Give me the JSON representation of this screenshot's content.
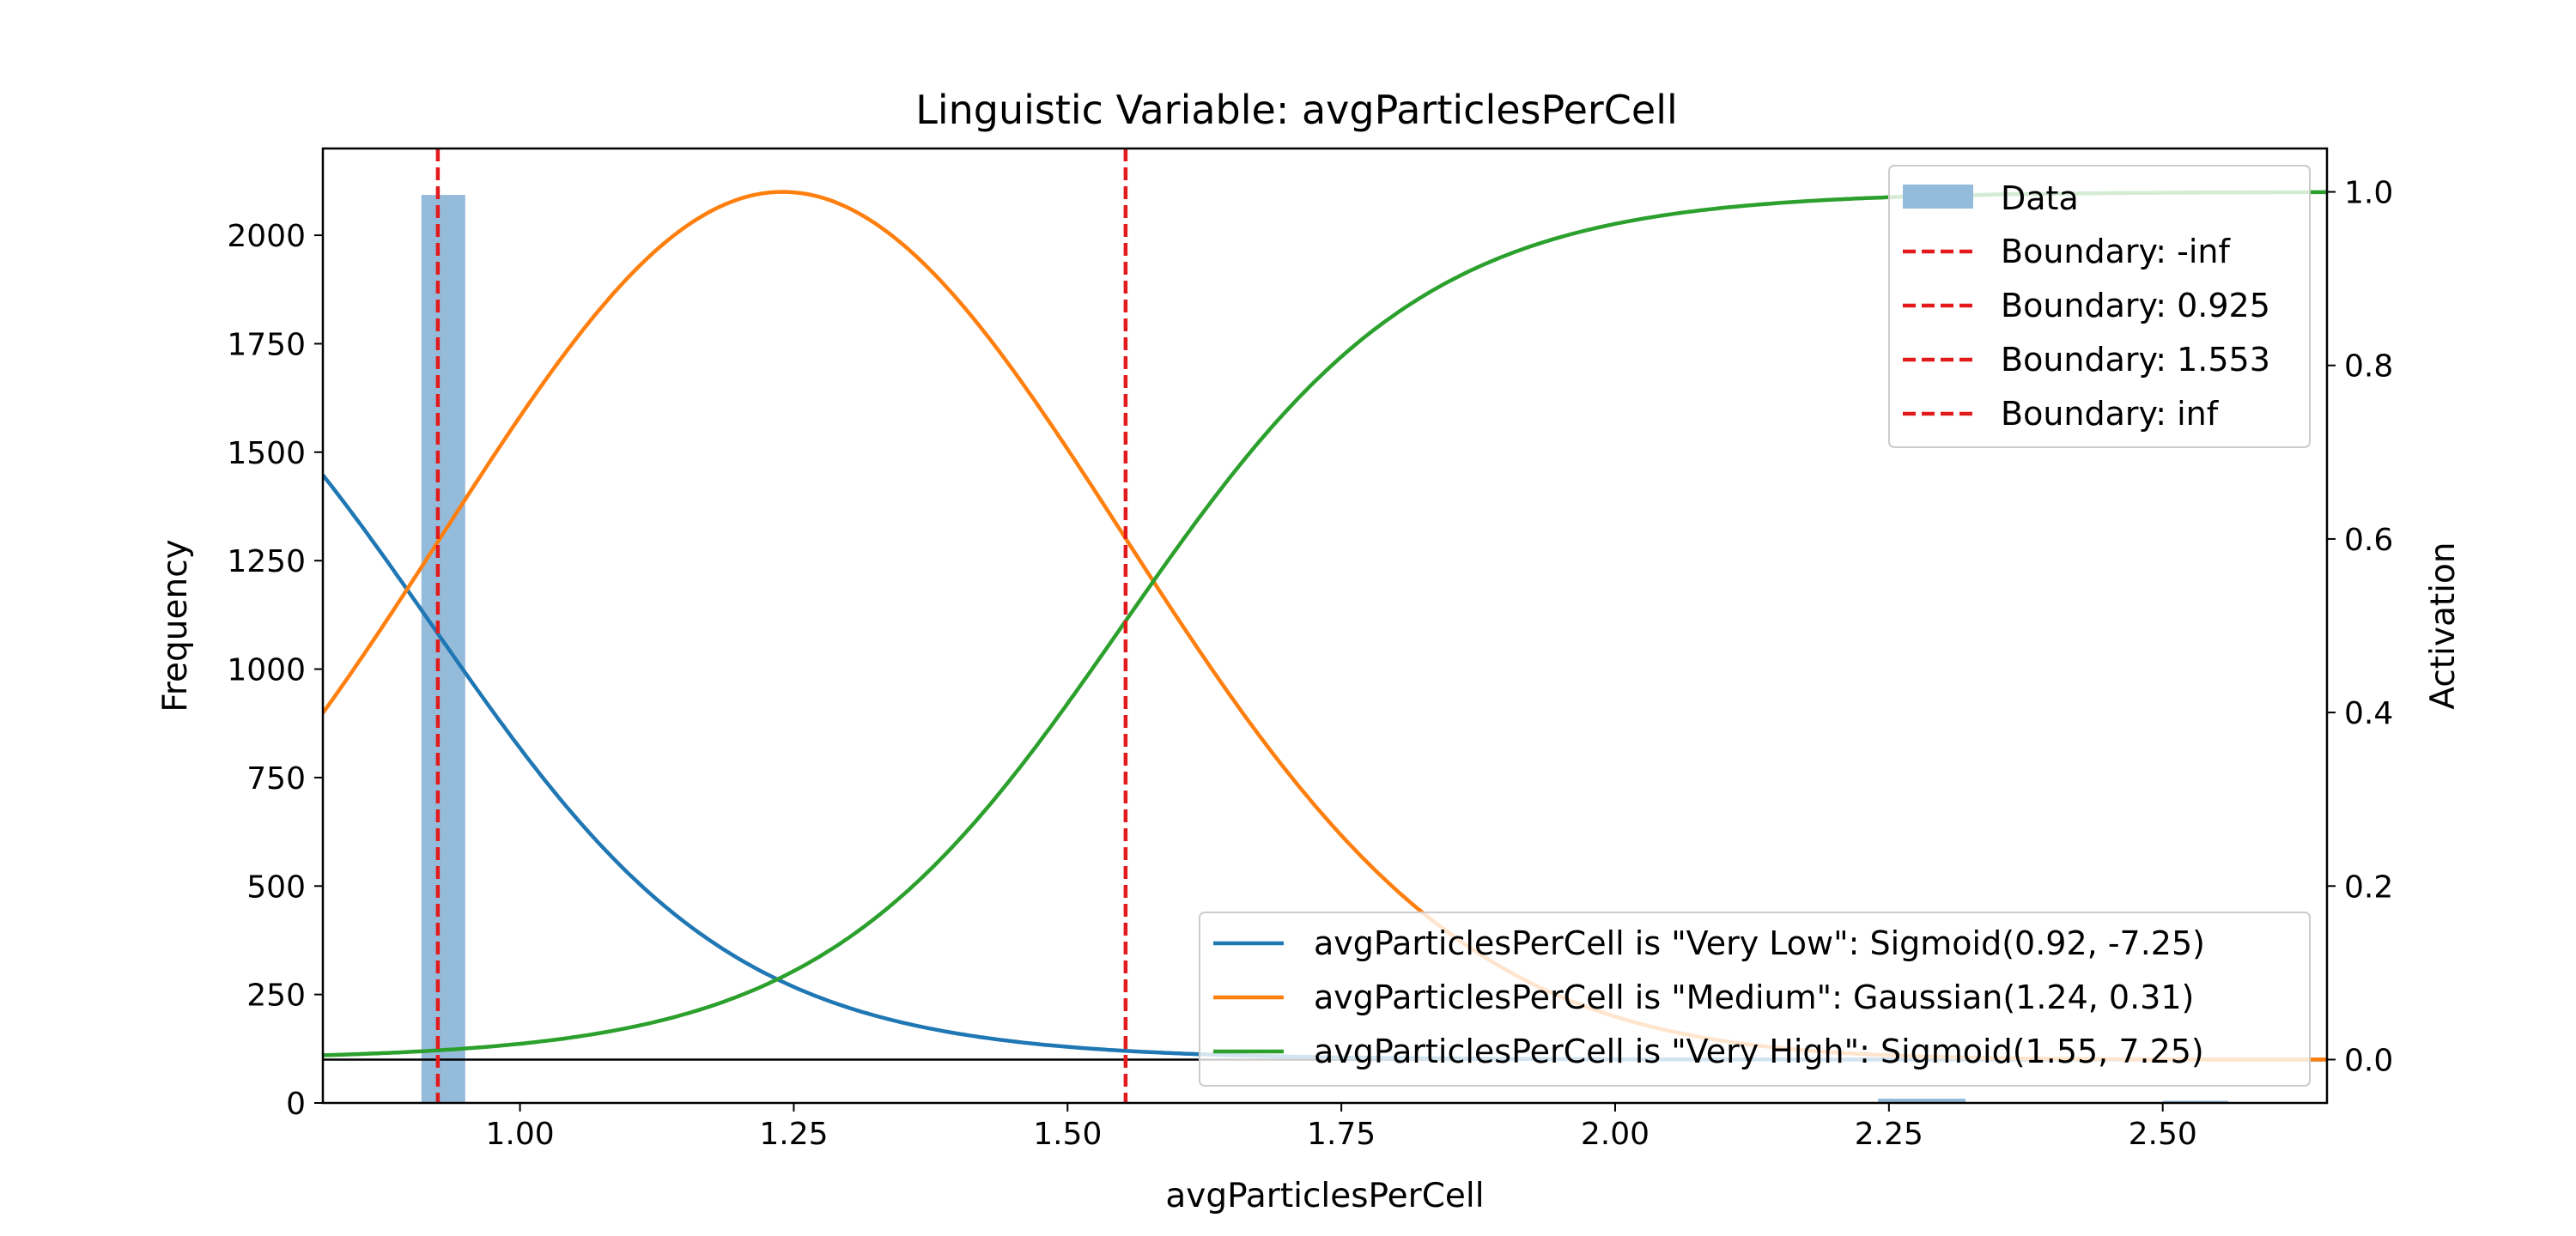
{
  "chart_data": {
    "type": "line",
    "title": "Linguistic Variable: avgParticlesPerCell",
    "xlabel": "avgParticlesPerCell",
    "ylabel": "Frequency",
    "y2label": "Activation",
    "xlim": [
      0.82,
      2.65
    ],
    "ylim": [
      0,
      2200
    ],
    "y2lim": [
      -0.05,
      1.05
    ],
    "x_ticks": [
      "1.00",
      "1.25",
      "1.50",
      "1.75",
      "2.00",
      "2.25",
      "2.50"
    ],
    "y_ticks": [
      "0",
      "250",
      "500",
      "750",
      "1000",
      "1250",
      "1500",
      "1750",
      "2000"
    ],
    "y2_ticks": [
      "0.0",
      "0.2",
      "0.4",
      "0.6",
      "0.8",
      "1.0"
    ],
    "grid": false,
    "histogram": {
      "name": "Data",
      "color": "#95bbdb",
      "bins": [
        {
          "x0": 0.91,
          "x1": 0.95,
          "count": 2093
        },
        {
          "x0": 2.24,
          "x1": 2.32,
          "count": 10
        },
        {
          "x0": 2.5,
          "x1": 2.56,
          "count": 5
        }
      ]
    },
    "boundaries": {
      "color": "#e31a1c",
      "entries": [
        {
          "label": "Boundary: -inf",
          "value": null
        },
        {
          "label": "Boundary: 0.925",
          "value": 0.925
        },
        {
          "label": "Boundary: 1.553",
          "value": 1.553
        },
        {
          "label": "Boundary: inf",
          "value": null
        }
      ]
    },
    "zero_line": 0.0,
    "series": [
      {
        "name": "avgParticlesPerCell is \"Very Low\": Sigmoid(0.92, -7.25)",
        "kind": "sigmoid",
        "center": 0.92,
        "slope": -7.25,
        "color": "#1f77b4"
      },
      {
        "name": "avgParticlesPerCell is \"Medium\": Gaussian(1.24, 0.31)",
        "kind": "gaussian",
        "center": 1.24,
        "sigma": 0.31,
        "color": "#ff7f0e"
      },
      {
        "name": "avgParticlesPerCell is \"Very High\": Sigmoid(1.55, 7.25)",
        "kind": "sigmoid",
        "center": 1.55,
        "slope": 7.25,
        "color": "#2ca02c"
      }
    ],
    "legend_upper_placement": "top-right",
    "legend_lower_placement": "bottom-right"
  }
}
